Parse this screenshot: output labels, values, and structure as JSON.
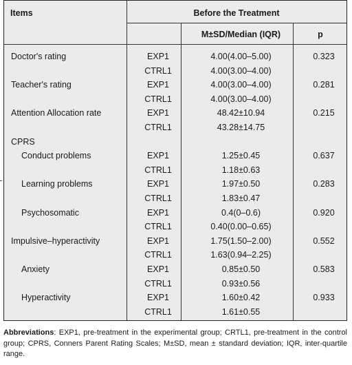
{
  "header": {
    "items": "Items",
    "before_treatment": "Before the Treatment",
    "mean_sd_median": "M±SD/Median (IQR)",
    "p": "p"
  },
  "rows": [
    {
      "item": "Doctor's rating",
      "indent": false,
      "group": "EXP1",
      "value": "4.00(4.00–5.00)",
      "p": "0.323"
    },
    {
      "item": "",
      "indent": false,
      "group": "CTRL1",
      "value": "4.00(3.00–4.00)",
      "p": ""
    },
    {
      "item": "Teacher's rating",
      "indent": false,
      "group": "EXP1",
      "value": "4.00(3.00–4.00)",
      "p": "0.281"
    },
    {
      "item": "",
      "indent": false,
      "group": "CTRL1",
      "value": "4.00(3.00–4.00)",
      "p": ""
    },
    {
      "item": "Attention Allocation rate",
      "indent": false,
      "group": "EXP1",
      "value": "48.42±10.94",
      "p": "0.215"
    },
    {
      "item": "",
      "indent": false,
      "group": "CTRL1",
      "value": "43.28±14.75",
      "p": ""
    },
    {
      "item": "CPRS",
      "indent": false,
      "group": "",
      "value": "",
      "p": ""
    },
    {
      "item": "Conduct problems",
      "indent": true,
      "group": "EXP1",
      "value": "1.25±0.45",
      "p": "0.637"
    },
    {
      "item": "",
      "indent": false,
      "group": "CTRL1",
      "value": "1.18±0.63",
      "p": ""
    },
    {
      "item": "Learning problems",
      "indent": true,
      "group": "EXP1",
      "value": "1.97±0.50",
      "p": "0.283"
    },
    {
      "item": "",
      "indent": false,
      "group": "CTRL1",
      "value": "1.83±0.47",
      "p": ""
    },
    {
      "item": "Psychosomatic",
      "indent": true,
      "group": "EXP1",
      "value": "0.4(0–0.6)",
      "p": "0.920"
    },
    {
      "item": "",
      "indent": false,
      "group": "CTRL1",
      "value": "0.40(0.00–0.65)",
      "p": ""
    },
    {
      "item": "Impulsive–hyperactivity",
      "indent": false,
      "group": "EXP1",
      "value": "1.75(1.50–2.00)",
      "p": "0.552"
    },
    {
      "item": "",
      "indent": false,
      "group": "CTRL1",
      "value": "1.63(0.94–2.25)",
      "p": ""
    },
    {
      "item": "Anxiety",
      "indent": true,
      "group": "EXP1",
      "value": "0.85±0.50",
      "p": "0.583"
    },
    {
      "item": "",
      "indent": false,
      "group": "CTRL1",
      "value": "0.93±0.56",
      "p": ""
    },
    {
      "item": "Hyperactivity",
      "indent": true,
      "group": "EXP1",
      "value": "1.60±0.42",
      "p": "0.933"
    },
    {
      "item": "",
      "indent": false,
      "group": "CTRL1",
      "value": "1.61±0.55",
      "p": ""
    }
  ],
  "footnote": {
    "label": "Abbreviations",
    "text": ": EXP1, pre-treatment in the experimental group; CRTL1, pre-treatment in the control group; CPRS, Conners Parent Rating Scales; M±SD, mean ± standard deviation; IQR, inter-quartile range."
  }
}
